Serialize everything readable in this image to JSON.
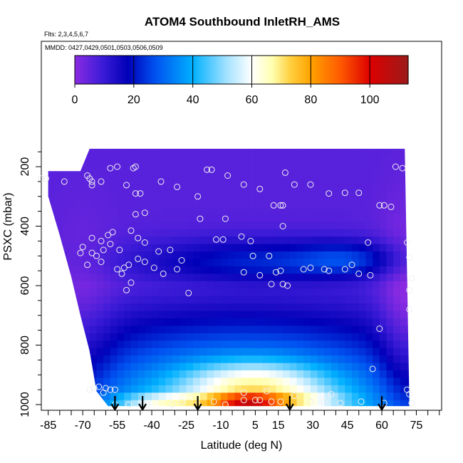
{
  "chart_data": {
    "type": "heatmap",
    "title": "ATOM4 Southbound InletRH_AMS",
    "subtitle_flights": "Flts: 2,3,4,5,6,7",
    "subtitle_dates": "MMDD: 0427,0429,0501,0503,0506,0509",
    "xlabel": "Latitude (deg N)",
    "ylabel": "PSXC (mbar)",
    "xlim": [
      -88,
      86
    ],
    "ylim": [
      1015,
      100
    ],
    "y_inverted": true,
    "x_ticks": [
      -85,
      -70,
      -55,
      -40,
      -25,
      -10,
      5,
      15,
      30,
      45,
      60,
      75
    ],
    "x_tick_labels": [
      "-85",
      "-70",
      "-55",
      "-40",
      "-25",
      "-10",
      "5",
      "15",
      "30",
      "45",
      "60",
      "75"
    ],
    "x_minor_step": 5,
    "y_ticks": [
      200,
      400,
      600,
      800,
      1000
    ],
    "y_tick_labels": [
      "200",
      "400",
      "600",
      "800",
      "1000"
    ],
    "colorbar": {
      "min": 0,
      "max": 113,
      "ticks": [
        0,
        20,
        40,
        60,
        80,
        100
      ],
      "tick_labels": [
        "0",
        "20",
        "40",
        "60",
        "80",
        "100"
      ],
      "stops": [
        {
          "v": 0,
          "c": "#8a2be2"
        },
        {
          "v": 9,
          "c": "#3f1cd8"
        },
        {
          "v": 18,
          "c": "#0000b8"
        },
        {
          "v": 27,
          "c": "#0050f0"
        },
        {
          "v": 40,
          "c": "#00b0ff"
        },
        {
          "v": 52,
          "c": "#aae4ff"
        },
        {
          "v": 60,
          "c": "#ffffff"
        },
        {
          "v": 67,
          "c": "#ffffb0"
        },
        {
          "v": 73,
          "c": "#ffd040"
        },
        {
          "v": 80,
          "c": "#ffa200"
        },
        {
          "v": 90,
          "c": "#ff5a00"
        },
        {
          "v": 100,
          "c": "#dd0000"
        },
        {
          "v": 113,
          "c": "#9c1a1a"
        }
      ]
    },
    "grid": false,
    "domain_lat_range": [
      -90,
      72
    ],
    "domain_upper_pressure": [
      {
        "lat": -85,
        "p": 215
      },
      {
        "lat": -71,
        "p": 215
      },
      {
        "lat": -67,
        "p": 140
      },
      {
        "lat": 70,
        "p": 140
      }
    ],
    "domain_lower_pressure": [
      {
        "lat": -85,
        "p": 300
      },
      {
        "lat": -80,
        "p": 430
      },
      {
        "lat": -75,
        "p": 570
      },
      {
        "lat": -71,
        "p": 700
      },
      {
        "lat": -67,
        "p": 820
      },
      {
        "lat": -64,
        "p": 955
      },
      {
        "lat": -59,
        "p": 1005
      },
      {
        "lat": 72,
        "p": 1005
      }
    ],
    "field_description": "RH (%) curtain vs latitude and pressure",
    "soundings_markers_lat": [
      -56,
      -44,
      -20,
      20,
      60
    ],
    "obs_points": [
      {
        "lat": -88,
        "p": 240
      },
      {
        "lat": -86,
        "p": 240
      },
      {
        "lat": -78,
        "p": 250
      },
      {
        "lat": -68,
        "p": 230
      },
      {
        "lat": -67,
        "p": 240
      },
      {
        "lat": -66,
        "p": 250
      },
      {
        "lat": -66,
        "p": 262
      },
      {
        "lat": -62,
        "p": 250
      },
      {
        "lat": -58,
        "p": 205
      },
      {
        "lat": -55,
        "p": 200
      },
      {
        "lat": -51,
        "p": 262
      },
      {
        "lat": -48,
        "p": 205
      },
      {
        "lat": -47,
        "p": 200
      },
      {
        "lat": -47,
        "p": 290
      },
      {
        "lat": -45,
        "p": 290
      },
      {
        "lat": -36,
        "p": 250
      },
      {
        "lat": -29,
        "p": 268
      },
      {
        "lat": -20,
        "p": 300
      },
      {
        "lat": -16,
        "p": 210
      },
      {
        "lat": -14,
        "p": 210
      },
      {
        "lat": -7,
        "p": 230
      },
      {
        "lat": 0,
        "p": 260
      },
      {
        "lat": 7,
        "p": 275
      },
      {
        "lat": 18,
        "p": 220
      },
      {
        "lat": 22,
        "p": 260
      },
      {
        "lat": 29,
        "p": 260
      },
      {
        "lat": 37,
        "p": 290
      },
      {
        "lat": 44,
        "p": 288
      },
      {
        "lat": 50,
        "p": 288
      },
      {
        "lat": 59,
        "p": 330
      },
      {
        "lat": 61,
        "p": 330
      },
      {
        "lat": 64,
        "p": 335
      },
      {
        "lat": 66,
        "p": 200
      },
      {
        "lat": 69,
        "p": 205
      },
      {
        "lat": 13,
        "p": 330
      },
      {
        "lat": 16,
        "p": 330
      },
      {
        "lat": 17,
        "p": 330
      },
      {
        "lat": -47,
        "p": 360
      },
      {
        "lat": -43,
        "p": 355
      },
      {
        "lat": -19,
        "p": 375
      },
      {
        "lat": -8,
        "p": 375
      },
      {
        "lat": 17,
        "p": 400
      },
      {
        "lat": -70,
        "p": 470
      },
      {
        "lat": -66,
        "p": 440
      },
      {
        "lat": -62,
        "p": 450
      },
      {
        "lat": -59,
        "p": 430
      },
      {
        "lat": -57,
        "p": 420
      },
      {
        "lat": -49,
        "p": 415
      },
      {
        "lat": -46,
        "p": 440
      },
      {
        "lat": -43,
        "p": 455
      },
      {
        "lat": -37,
        "p": 485
      },
      {
        "lat": -32,
        "p": 480
      },
      {
        "lat": -12,
        "p": 445
      },
      {
        "lat": -9,
        "p": 445
      },
      {
        "lat": -1,
        "p": 435
      },
      {
        "lat": 3,
        "p": 450
      },
      {
        "lat": 54,
        "p": 455
      },
      {
        "lat": 71,
        "p": 455
      },
      {
        "lat": -71,
        "p": 490
      },
      {
        "lat": -68,
        "p": 530
      },
      {
        "lat": -64,
        "p": 500
      },
      {
        "lat": -61,
        "p": 480
      },
      {
        "lat": -58,
        "p": 460
      },
      {
        "lat": -54,
        "p": 480
      },
      {
        "lat": -50,
        "p": 530
      },
      {
        "lat": -55,
        "p": 545
      },
      {
        "lat": -52,
        "p": 540
      },
      {
        "lat": -62,
        "p": 520
      },
      {
        "lat": -66,
        "p": 490
      },
      {
        "lat": -46,
        "p": 510
      },
      {
        "lat": -43,
        "p": 520
      },
      {
        "lat": -39,
        "p": 540
      },
      {
        "lat": -35,
        "p": 560
      },
      {
        "lat": -29,
        "p": 545
      },
      {
        "lat": -27,
        "p": 515
      },
      {
        "lat": 0,
        "p": 555
      },
      {
        "lat": 4,
        "p": 500
      },
      {
        "lat": 7,
        "p": 565
      },
      {
        "lat": 11,
        "p": 500
      },
      {
        "lat": 14,
        "p": 555
      },
      {
        "lat": 16,
        "p": 550
      },
      {
        "lat": 26,
        "p": 545
      },
      {
        "lat": 29,
        "p": 540
      },
      {
        "lat": 35,
        "p": 545
      },
      {
        "lat": 37,
        "p": 550
      },
      {
        "lat": 44,
        "p": 545
      },
      {
        "lat": 47,
        "p": 530
      },
      {
        "lat": 50,
        "p": 560
      },
      {
        "lat": 55,
        "p": 565
      },
      {
        "lat": 72,
        "p": 505
      },
      {
        "lat": 73,
        "p": 575
      },
      {
        "lat": -53,
        "p": 560
      },
      {
        "lat": -51,
        "p": 615
      },
      {
        "lat": -49,
        "p": 590
      },
      {
        "lat": -24,
        "p": 625
      },
      {
        "lat": 12,
        "p": 595
      },
      {
        "lat": 17,
        "p": 595
      },
      {
        "lat": 19,
        "p": 600
      },
      {
        "lat": 72,
        "p": 615
      },
      {
        "lat": 72,
        "p": 680
      },
      {
        "lat": 59,
        "p": 745
      },
      {
        "lat": 56,
        "p": 880
      },
      {
        "lat": -67,
        "p": 950
      },
      {
        "lat": -65,
        "p": 945
      },
      {
        "lat": -63,
        "p": 940
      },
      {
        "lat": -60,
        "p": 945
      },
      {
        "lat": -58,
        "p": 950
      },
      {
        "lat": -56,
        "p": 950
      },
      {
        "lat": -61,
        "p": 960
      },
      {
        "lat": -56,
        "p": 1000
      },
      {
        "lat": -50,
        "p": 1000
      },
      {
        "lat": -42,
        "p": 1000
      },
      {
        "lat": -31,
        "p": 1000
      },
      {
        "lat": -27,
        "p": 990
      },
      {
        "lat": -20,
        "p": 1000
      },
      {
        "lat": -13,
        "p": 990
      },
      {
        "lat": -8,
        "p": 1000
      },
      {
        "lat": 0,
        "p": 985
      },
      {
        "lat": 0,
        "p": 960
      },
      {
        "lat": 5,
        "p": 985
      },
      {
        "lat": 7,
        "p": 985
      },
      {
        "lat": 12,
        "p": 990
      },
      {
        "lat": 16,
        "p": 990
      },
      {
        "lat": 22,
        "p": 970
      },
      {
        "lat": 29,
        "p": 990
      },
      {
        "lat": 35,
        "p": 990
      },
      {
        "lat": 38,
        "p": 965
      },
      {
        "lat": 42,
        "p": 995
      },
      {
        "lat": 51,
        "p": 990
      },
      {
        "lat": 61,
        "p": 995
      },
      {
        "lat": 71,
        "p": 950
      },
      {
        "lat": 72,
        "p": 965
      },
      {
        "lat": 73,
        "p": 995
      },
      {
        "lat": 10,
        "p": 955
      }
    ]
  }
}
